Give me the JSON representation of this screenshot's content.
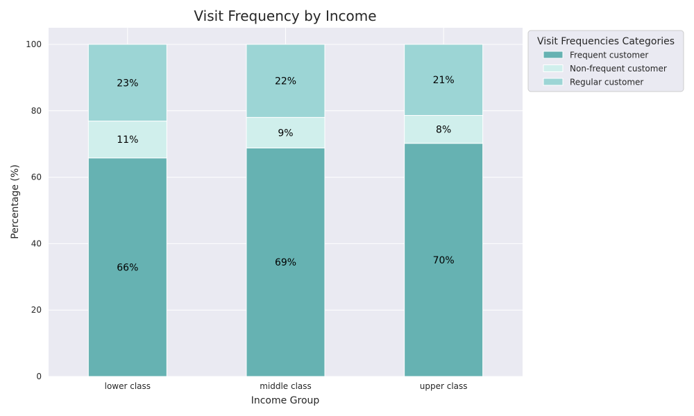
{
  "chart_data": {
    "type": "bar",
    "stacked": true,
    "title": "Visit Frequency by Income",
    "xlabel": "Income Group",
    "ylabel": "Percentage (%)",
    "categories": [
      "lower class",
      "middle class",
      "upper class"
    ],
    "ylim": [
      0,
      105
    ],
    "yticks": [
      0,
      20,
      40,
      60,
      80,
      100
    ],
    "grid": true,
    "legend": {
      "title": "Visit Frequencies Categories",
      "placement": "outside-top-right"
    },
    "series": [
      {
        "name": "Frequent customer",
        "values": [
          65.8,
          68.8,
          70.2
        ],
        "labels": [
          "66%",
          "69%",
          "70%"
        ],
        "color": "#66b2b2"
      },
      {
        "name": "Non-frequent customer",
        "values": [
          11.1,
          9.2,
          8.4
        ],
        "labels": [
          "11%",
          "9%",
          "8%"
        ],
        "color": "#d0efec"
      },
      {
        "name": "Regular customer",
        "values": [
          23.1,
          22.0,
          21.4
        ],
        "labels": [
          "23%",
          "22%",
          "21%"
        ],
        "color": "#9cd5d5"
      }
    ],
    "plot_background": "#eaeaf2",
    "grid_color": "#ffffff"
  }
}
